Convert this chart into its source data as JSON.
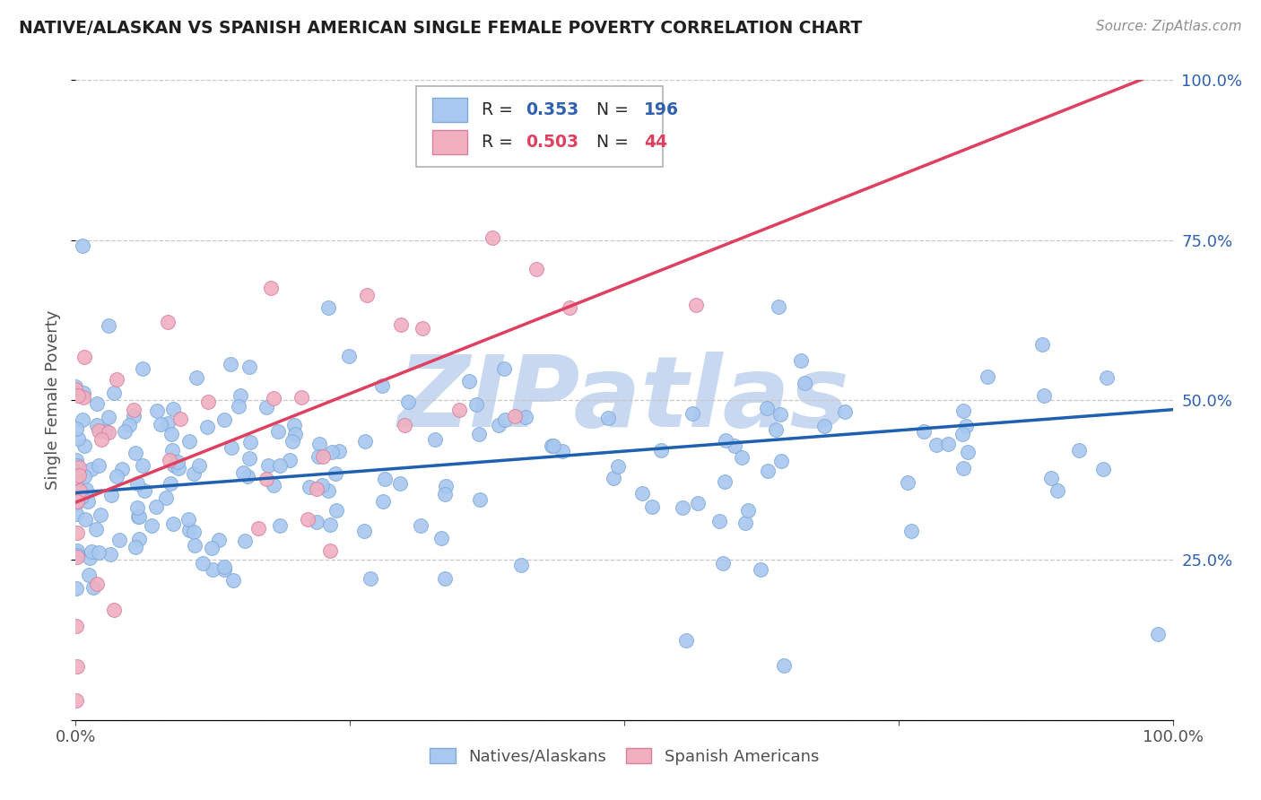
{
  "title": "NATIVE/ALASKAN VS SPANISH AMERICAN SINGLE FEMALE POVERTY CORRELATION CHART",
  "source": "Source: ZipAtlas.com",
  "ylabel": "Single Female Poverty",
  "x_min": 0.0,
  "x_max": 1.0,
  "y_min": 0.0,
  "y_max": 1.0,
  "blue_R": 0.353,
  "blue_N": 196,
  "pink_R": 0.503,
  "pink_N": 44,
  "blue_color": "#a8c8f0",
  "pink_color": "#f0b0c0",
  "blue_line_color": "#2060b0",
  "pink_line_color": "#e04060",
  "blue_edge_color": "#80aad8",
  "pink_edge_color": "#d880a0",
  "watermark": "ZIPatlas",
  "watermark_color": "#c8d8f0",
  "background_color": "#ffffff",
  "grid_color": "#c8c8c8",
  "title_color": "#202020",
  "label_color": "#505050",
  "tick_label_color": "#3060b0",
  "blue_intercept": 0.355,
  "blue_slope": 0.13,
  "pink_intercept": 0.34,
  "pink_slope": 0.68
}
